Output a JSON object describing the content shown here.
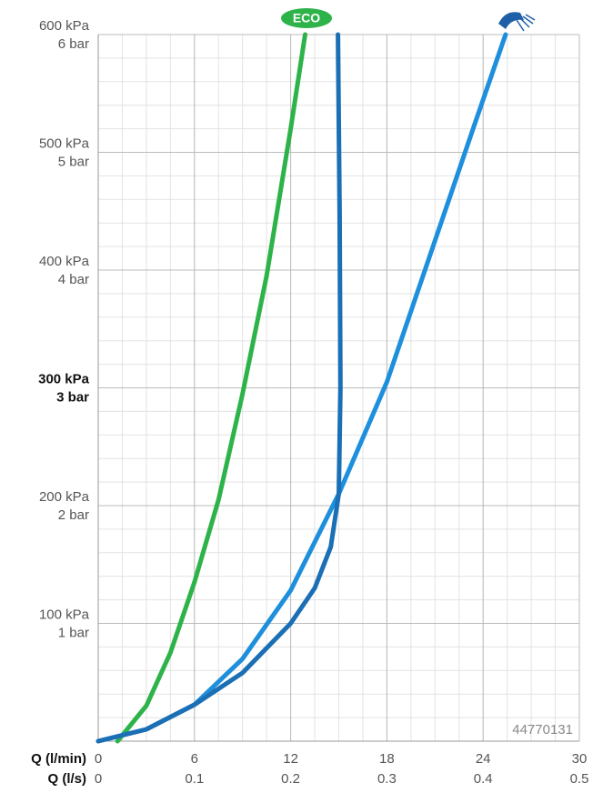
{
  "chart_data": {
    "type": "line",
    "x_title": "Q (l/min)",
    "x2_title": "Q (l/s)",
    "xlim": [
      0,
      30
    ],
    "xticks": [
      0,
      6,
      12,
      18,
      24,
      30
    ],
    "x2lim": [
      0,
      0.5
    ],
    "x2ticks": [
      0,
      0.1,
      0.2,
      0.3,
      0.4,
      0.5
    ],
    "ylim": [
      0,
      600
    ],
    "yticks": [
      {
        "value": 100,
        "label": "100 kPa"
      },
      {
        "value": 200,
        "label": "200 kPa"
      },
      {
        "value": 300,
        "label": "300 kPa"
      },
      {
        "value": 400,
        "label": "400 kPa"
      },
      {
        "value": 500,
        "label": "500 kPa"
      },
      {
        "value": 600,
        "label": "600 kPa"
      }
    ],
    "y2lim": [
      0,
      6
    ],
    "y2ticks": [
      {
        "value": 1,
        "label": "1 bar"
      },
      {
        "value": 2,
        "label": "2 bar"
      },
      {
        "value": 3,
        "label": "3 bar"
      },
      {
        "value": 4,
        "label": "4 bar"
      },
      {
        "value": 5,
        "label": "5 bar"
      },
      {
        "value": 6,
        "label": "6 bar"
      }
    ],
    "bold_ytick": 300,
    "grid": true,
    "minor_grid": {
      "x": 1.5,
      "y": 20
    },
    "annotation": "44770131",
    "series": [
      {
        "name": "ECO",
        "color": "#2db34a",
        "x": [
          1.2,
          3,
          4.5,
          6,
          7.5,
          9,
          10.5,
          12,
          12.9
        ],
        "values": [
          0,
          30,
          75,
          135,
          205,
          295,
          395,
          520,
          600
        ]
      },
      {
        "color": "#1e8fdc",
        "x": [
          0,
          3,
          6,
          9,
          12,
          15,
          18,
          21,
          23.4,
          25.4
        ],
        "values": [
          0,
          10,
          31,
          70,
          128,
          210,
          305,
          425,
          521,
          600
        ]
      },
      {
        "color": "#1a6fb5",
        "x": [
          0,
          3,
          6,
          9,
          12,
          13.5,
          14.5,
          15,
          15.1,
          15.05,
          14.95
        ],
        "values": [
          0,
          10,
          31,
          58,
          100,
          130,
          165,
          210,
          300,
          450,
          600
        ]
      }
    ]
  }
}
